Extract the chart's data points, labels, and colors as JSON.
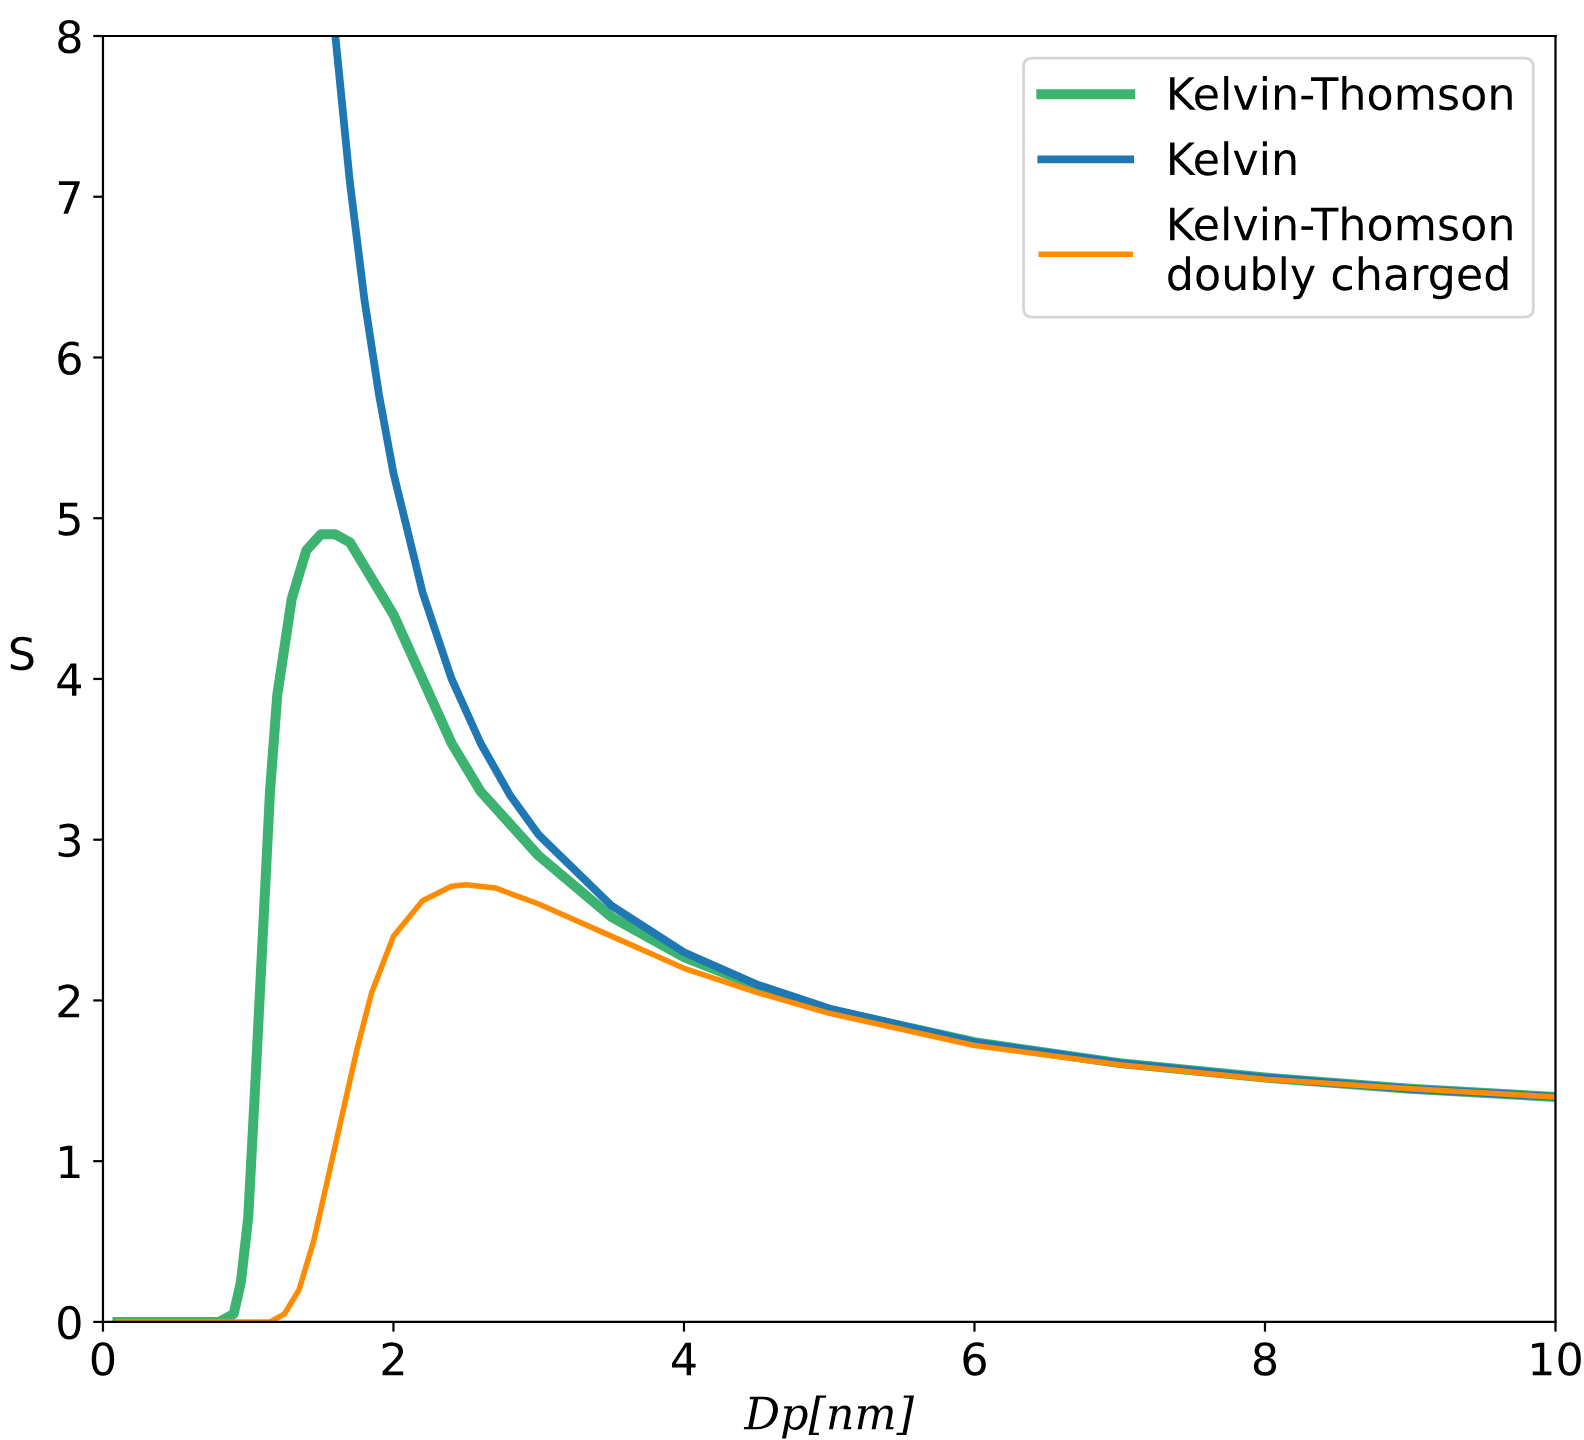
{
  "chart_data": {
    "type": "line",
    "xlabel": "Dp[nm]",
    "ylabel": "S",
    "xlim": [
      0,
      10
    ],
    "ylim": [
      0,
      8
    ],
    "xticks": [
      0,
      2,
      4,
      6,
      8,
      10
    ],
    "yticks": [
      0,
      1,
      2,
      3,
      4,
      5,
      6,
      7,
      8
    ],
    "grid": false,
    "legend": "top right",
    "marker": "none",
    "line_style": "solid",
    "series": [
      {
        "name": "Kelvin-Thomson",
        "color": "#3cb371",
        "x": [
          0.1,
          0.8,
          0.9,
          0.95,
          1.0,
          1.05,
          1.1,
          1.15,
          1.2,
          1.3,
          1.4,
          1.5,
          1.6,
          1.7,
          1.8,
          2.0,
          2.2,
          2.4,
          2.6,
          2.8,
          3.0,
          3.5,
          4,
          4.5,
          5,
          6,
          7,
          8,
          9,
          10
        ],
        "values": [
          0,
          0,
          0.05,
          0.25,
          0.65,
          1.5,
          2.4,
          3.3,
          3.9,
          4.5,
          4.8,
          4.9,
          4.9,
          4.85,
          4.7,
          4.4,
          4.0,
          3.6,
          3.3,
          3.1,
          2.9,
          2.52,
          2.27,
          2.09,
          1.94,
          1.74,
          1.61,
          1.52,
          1.45,
          1.4
        ]
      },
      {
        "name": "Kelvin",
        "color": "#1f77b4",
        "x": [
          1.6,
          1.7,
          1.8,
          1.9,
          2.0,
          2.2,
          2.4,
          2.6,
          2.8,
          3.0,
          3.5,
          4,
          4.5,
          5,
          6,
          7,
          8,
          9,
          10
        ],
        "values": [
          8.0,
          7.09,
          6.36,
          5.77,
          5.28,
          4.54,
          4.0,
          3.6,
          3.28,
          3.03,
          2.59,
          2.3,
          2.1,
          1.95,
          1.74,
          1.61,
          1.52,
          1.45,
          1.4
        ]
      },
      {
        "name": "Kelvin-Thomson\ndoubly charged",
        "color": "#ff8c00",
        "x": [
          0.1,
          1.15,
          1.25,
          1.35,
          1.45,
          1.55,
          1.65,
          1.75,
          1.85,
          2.0,
          2.2,
          2.4,
          2.5,
          2.7,
          3.0,
          3.5,
          4,
          4.5,
          5,
          6,
          7,
          8,
          9,
          10
        ],
        "values": [
          0,
          0,
          0.05,
          0.2,
          0.5,
          0.9,
          1.3,
          1.7,
          2.05,
          2.4,
          2.62,
          2.71,
          2.72,
          2.7,
          2.6,
          2.4,
          2.2,
          2.05,
          1.92,
          1.72,
          1.6,
          1.51,
          1.45,
          1.4
        ]
      }
    ]
  }
}
